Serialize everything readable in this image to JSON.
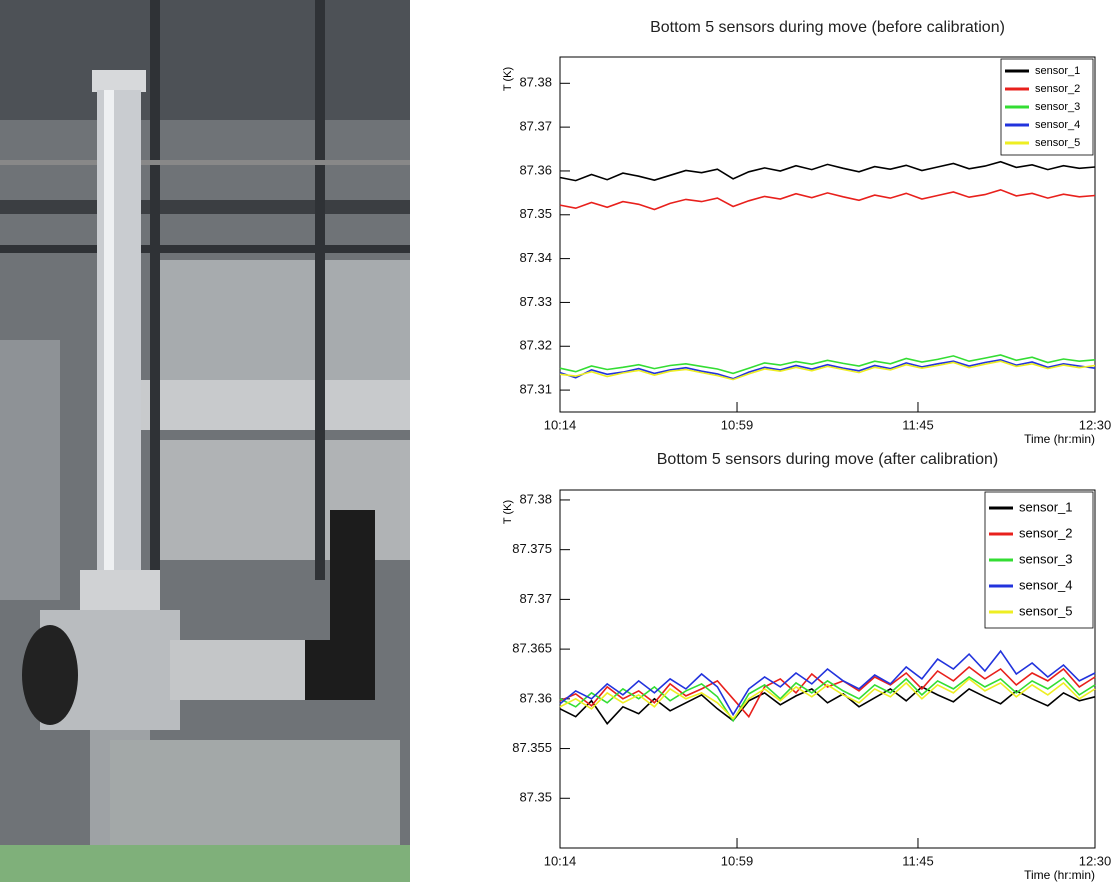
{
  "chart_data": [
    {
      "type": "line",
      "title": "Bottom 5 sensors during move (before calibration)",
      "y_label": "T (K)",
      "x_label": "Time (hr:min)",
      "x": [
        "10:14",
        "10:18",
        "10:22",
        "10:26",
        "10:30",
        "10:34",
        "10:38",
        "10:42",
        "10:46",
        "10:50",
        "10:54",
        "10:58",
        "11:02",
        "11:06",
        "11:10",
        "11:14",
        "11:18",
        "11:22",
        "11:26",
        "11:30",
        "11:34",
        "11:38",
        "11:42",
        "11:46",
        "11:50",
        "11:54",
        "11:58",
        "12:02",
        "12:06",
        "12:10",
        "12:14",
        "12:18",
        "12:22",
        "12:26",
        "12:30"
      ],
      "xlim": [
        "10:14",
        "12:30"
      ],
      "xticks": [
        "10:14",
        "10:59",
        "11:45",
        "12:30"
      ],
      "ylim": [
        87.305,
        87.386
      ],
      "yticks": [
        87.31,
        87.32,
        87.33,
        87.34,
        87.35,
        87.36,
        87.37,
        87.38
      ],
      "legend": "upper right",
      "series": [
        {
          "name": "sensor_1",
          "color": "#000000",
          "values": [
            87.3585,
            87.3578,
            87.3592,
            87.358,
            87.3595,
            87.3588,
            87.3579,
            87.359,
            87.3601,
            87.3596,
            87.3604,
            87.3582,
            87.3598,
            87.3607,
            87.36,
            87.3612,
            87.3603,
            87.3615,
            87.3606,
            87.3598,
            87.361,
            87.3604,
            87.3613,
            87.3601,
            87.3609,
            87.3617,
            87.3605,
            87.3611,
            87.3621,
            87.3608,
            87.3614,
            87.3603,
            87.3612,
            87.3606,
            87.3609
          ]
        },
        {
          "name": "sensor_2",
          "color": "#e8201c",
          "values": [
            87.3522,
            87.3515,
            87.3528,
            87.3517,
            87.353,
            87.3524,
            87.3512,
            87.3526,
            87.3535,
            87.353,
            87.3538,
            87.3519,
            87.3532,
            87.3542,
            87.3536,
            87.3548,
            87.3539,
            87.355,
            87.3541,
            87.3533,
            87.3545,
            87.3538,
            87.3549,
            87.3536,
            87.3544,
            87.3552,
            87.354,
            87.3546,
            87.3557,
            87.3543,
            87.3549,
            87.3538,
            87.3547,
            87.3541,
            87.3544
          ]
        },
        {
          "name": "sensor_3",
          "color": "#33dd33",
          "values": [
            87.315,
            87.3142,
            87.3155,
            87.3147,
            87.3152,
            87.3158,
            87.3149,
            87.3156,
            87.316,
            87.3154,
            87.3148,
            87.3138,
            87.315,
            87.3162,
            87.3157,
            87.3165,
            87.3159,
            87.3168,
            87.3161,
            87.3155,
            87.3166,
            87.316,
            87.3172,
            87.3164,
            87.317,
            87.3178,
            87.3166,
            87.3173,
            87.318,
            87.3168,
            87.3175,
            87.3163,
            87.3171,
            87.3166,
            87.3169
          ]
        },
        {
          "name": "sensor_4",
          "color": "#2233dd",
          "values": [
            87.314,
            87.3128,
            87.3146,
            87.3136,
            87.3141,
            87.3149,
            87.3138,
            87.3146,
            87.3151,
            87.3143,
            87.3137,
            87.3126,
            87.3141,
            87.3152,
            87.3146,
            87.3156,
            87.3148,
            87.3158,
            87.315,
            87.3144,
            87.3156,
            87.3149,
            87.3162,
            87.3153,
            87.316,
            87.3166,
            87.3155,
            87.3163,
            87.3169,
            87.3157,
            87.3164,
            87.3152,
            87.316,
            87.3155,
            87.315
          ]
        },
        {
          "name": "sensor_5",
          "color": "#eeee22",
          "values": [
            87.3136,
            87.3132,
            87.3142,
            87.3131,
            87.3139,
            87.3145,
            87.3134,
            87.3143,
            87.3147,
            87.314,
            87.3133,
            87.3124,
            87.3137,
            87.3148,
            87.3143,
            87.3152,
            87.3144,
            87.3154,
            87.3147,
            87.314,
            87.3152,
            87.3146,
            87.3158,
            87.315,
            87.3156,
            87.3163,
            87.3151,
            87.3159,
            87.3166,
            87.3154,
            87.316,
            87.3149,
            87.3157,
            87.3151,
            87.3156
          ]
        }
      ]
    },
    {
      "type": "line",
      "title": "Bottom 5 sensors during move (after calibration)",
      "y_label": "T (K)",
      "x_label": "Time (hr:min)",
      "x": [
        "10:14",
        "10:18",
        "10:22",
        "10:26",
        "10:30",
        "10:34",
        "10:38",
        "10:42",
        "10:46",
        "10:50",
        "10:54",
        "10:58",
        "11:02",
        "11:06",
        "11:10",
        "11:14",
        "11:18",
        "11:22",
        "11:26",
        "11:30",
        "11:34",
        "11:38",
        "11:42",
        "11:46",
        "11:50",
        "11:54",
        "11:58",
        "12:02",
        "12:06",
        "12:10",
        "12:14",
        "12:18",
        "12:22",
        "12:26",
        "12:30"
      ],
      "xlim": [
        "10:14",
        "12:30"
      ],
      "xticks": [
        "10:14",
        "10:59",
        "11:45",
        "12:30"
      ],
      "ylim": [
        87.345,
        87.381
      ],
      "yticks": [
        87.35,
        87.355,
        87.36,
        87.365,
        87.37,
        87.375,
        87.38
      ],
      "legend": "upper right",
      "series": [
        {
          "name": "sensor_1",
          "color": "#000000",
          "values": [
            87.359,
            87.3582,
            87.3598,
            87.3575,
            87.3592,
            87.3585,
            87.36,
            87.3588,
            87.3596,
            87.3604,
            87.359,
            87.3578,
            87.3598,
            87.3606,
            87.3594,
            87.3603,
            87.361,
            87.3596,
            87.3605,
            87.3592,
            87.3601,
            87.361,
            87.3598,
            87.3612,
            87.3604,
            87.3597,
            87.361,
            87.3602,
            87.3595,
            87.3608,
            87.36,
            87.3593,
            87.3606,
            87.3598,
            87.3602
          ]
        },
        {
          "name": "sensor_2",
          "color": "#e8201c",
          "values": [
            87.3598,
            87.3605,
            87.3593,
            87.3612,
            87.36,
            87.3608,
            87.3596,
            87.3615,
            87.3603,
            87.361,
            87.3618,
            87.36,
            87.3582,
            87.3612,
            87.362,
            87.3606,
            87.3625,
            87.3612,
            87.3618,
            87.3608,
            87.3622,
            87.3614,
            87.3626,
            87.361,
            87.3628,
            87.3618,
            87.3632,
            87.362,
            87.363,
            87.3614,
            87.3626,
            87.3618,
            87.363,
            87.3612,
            87.3622
          ]
        },
        {
          "name": "sensor_3",
          "color": "#33dd33",
          "values": [
            87.36,
            87.3592,
            87.3606,
            87.3596,
            87.361,
            87.36,
            87.3612,
            87.3598,
            87.3608,
            87.3615,
            87.3602,
            87.3578,
            87.3605,
            87.3614,
            87.36,
            87.3616,
            87.3606,
            87.3618,
            87.3608,
            87.36,
            87.3614,
            87.3606,
            87.362,
            87.3604,
            87.3618,
            87.361,
            87.3622,
            87.3612,
            87.362,
            87.3606,
            87.3618,
            87.361,
            87.3621,
            87.3604,
            87.3614
          ]
        },
        {
          "name": "sensor_4",
          "color": "#2233dd",
          "values": [
            87.3595,
            87.3608,
            87.36,
            87.3615,
            87.3604,
            87.3618,
            87.3606,
            87.362,
            87.361,
            87.3625,
            87.3612,
            87.3584,
            87.361,
            87.3622,
            87.3612,
            87.3626,
            87.3615,
            87.363,
            87.3618,
            87.361,
            87.3624,
            87.3615,
            87.3632,
            87.362,
            87.364,
            87.363,
            87.3645,
            87.3628,
            87.3648,
            87.3625,
            87.3636,
            87.3622,
            87.3634,
            87.3618,
            87.3626
          ]
        },
        {
          "name": "sensor_5",
          "color": "#eeee22",
          "values": [
            87.3592,
            87.36,
            87.359,
            87.3606,
            87.3596,
            87.3604,
            87.3592,
            87.361,
            87.36,
            87.3606,
            87.3596,
            87.358,
            87.36,
            87.361,
            87.3598,
            87.3612,
            87.3602,
            87.3614,
            87.3604,
            87.3596,
            87.361,
            87.3602,
            87.3616,
            87.36,
            87.3614,
            87.3606,
            87.362,
            87.3608,
            87.3616,
            87.3602,
            87.3614,
            87.3604,
            87.3616,
            87.36,
            87.361
          ]
        }
      ]
    }
  ]
}
